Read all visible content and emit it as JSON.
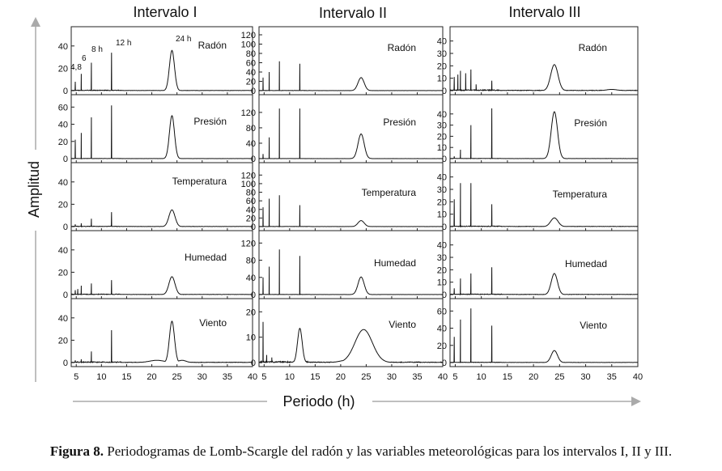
{
  "figure": {
    "ylabel": "Amplitud",
    "xlabel": "Periodo (h)",
    "caption_label": "Figura 8.",
    "caption_text": "Periodogramas de Lomb-Scargle del radón y las variables meteorológicas para los intervalos I, II y III.",
    "columns": [
      "Intervalo I",
      "Intervalo II",
      "Intervalo III"
    ],
    "rows": [
      "Radón",
      "Presión",
      "Temperatura",
      "Humedad",
      "Viento"
    ],
    "peak_annotations": [
      "4,8",
      "6",
      "8 h",
      "12 h",
      "24 h"
    ],
    "colors": {
      "line": "#111111",
      "axis": "#222222",
      "arrow": "#aaaaaa"
    }
  },
  "chart_data": {
    "type": "line",
    "xlim": [
      4,
      40
    ],
    "xticks": [
      5,
      10,
      15,
      20,
      25,
      30,
      35,
      40
    ],
    "panels": [
      {
        "column": "Intervalo I",
        "series": "Radón",
        "ylim": [
          0,
          50
        ],
        "yticks": [
          0,
          20,
          40
        ],
        "spikes": [
          [
            4.8,
            8
          ],
          [
            6,
            15
          ],
          [
            8,
            25
          ],
          [
            12,
            34
          ]
        ],
        "peaks": [
          [
            24,
            36,
            0.5
          ]
        ],
        "noise": 1
      },
      {
        "column": "Intervalo I",
        "series": "Presión",
        "ylim": [
          0,
          65
        ],
        "yticks": [
          0,
          20,
          40,
          60
        ],
        "spikes": [
          [
            4.8,
            22
          ],
          [
            6,
            30
          ],
          [
            8,
            48
          ],
          [
            12,
            62
          ]
        ],
        "peaks": [
          [
            24,
            50,
            0.5
          ]
        ],
        "noise": 0.5
      },
      {
        "column": "Intervalo I",
        "series": "Temperatura",
        "ylim": [
          0,
          50
        ],
        "yticks": [
          0,
          20,
          40
        ],
        "spikes": [
          [
            4.8,
            2
          ],
          [
            6,
            3
          ],
          [
            8,
            7
          ],
          [
            12,
            13
          ]
        ],
        "peaks": [
          [
            24,
            15,
            0.6
          ]
        ],
        "noise": 0.8
      },
      {
        "column": "Intervalo I",
        "series": "Humedad",
        "ylim": [
          0,
          50
        ],
        "yticks": [
          0,
          20,
          40
        ],
        "spikes": [
          [
            4.8,
            4
          ],
          [
            5.3,
            5
          ],
          [
            6,
            8
          ],
          [
            8,
            10
          ],
          [
            12,
            13
          ]
        ],
        "peaks": [
          [
            24,
            16,
            0.6
          ]
        ],
        "noise": 1
      },
      {
        "column": "Intervalo I",
        "series": "Viento",
        "ylim": [
          0,
          50
        ],
        "yticks": [
          0,
          20,
          40
        ],
        "spikes": [
          [
            4.8,
            2
          ],
          [
            6,
            3
          ],
          [
            8,
            10
          ],
          [
            12,
            29
          ]
        ],
        "peaks": [
          [
            24,
            37,
            0.5
          ],
          [
            21,
            2,
            1.5
          ],
          [
            26,
            2,
            0.8
          ]
        ],
        "noise": 1.5
      },
      {
        "column": "Intervalo II",
        "series": "Radón",
        "ylim": [
          0,
          120
        ],
        "yticks": [
          0,
          20,
          40,
          60,
          80,
          100,
          120
        ],
        "spikes": [
          [
            4.8,
            28
          ],
          [
            6,
            40
          ],
          [
            8,
            63
          ],
          [
            12,
            58
          ]
        ],
        "peaks": [
          [
            24,
            28,
            0.6
          ]
        ],
        "noise": 1
      },
      {
        "column": "Intervalo II",
        "series": "Presión",
        "ylim": [
          0,
          145
        ],
        "yticks": [
          0,
          40,
          80,
          120
        ],
        "spikes": [
          [
            4.8,
            12
          ],
          [
            6,
            55
          ],
          [
            8,
            130
          ],
          [
            12,
            130
          ]
        ],
        "peaks": [
          [
            24,
            64,
            0.6
          ]
        ],
        "noise": 0.5
      },
      {
        "column": "Intervalo II",
        "series": "Temperatura",
        "ylim": [
          0,
          130
        ],
        "yticks": [
          0,
          20,
          40,
          60,
          80,
          100,
          120
        ],
        "spikes": [
          [
            4.8,
            45
          ],
          [
            6,
            65
          ],
          [
            8,
            73
          ],
          [
            12,
            50
          ]
        ],
        "peaks": [
          [
            24,
            14,
            0.6
          ]
        ],
        "noise": 1
      },
      {
        "column": "Intervalo II",
        "series": "Humedad",
        "ylim": [
          0,
          130
        ],
        "yticks": [
          0,
          40,
          80,
          120
        ],
        "spikes": [
          [
            4.8,
            40
          ],
          [
            6,
            65
          ],
          [
            8,
            105
          ],
          [
            12,
            90
          ]
        ],
        "peaks": [
          [
            24,
            41,
            0.6
          ]
        ],
        "noise": 1
      },
      {
        "column": "Intervalo II",
        "series": "Viento",
        "ylim": [
          0,
          22
        ],
        "yticks": [
          0,
          10,
          20
        ],
        "spikes": [
          [
            4.8,
            16
          ],
          [
            5.5,
            3
          ],
          [
            6.5,
            2
          ]
        ],
        "peaks": [
          [
            12,
            13.5,
            0.45
          ],
          [
            24.5,
            13,
            1.7
          ],
          [
            21.5,
            1,
            1.5
          ]
        ],
        "noise": 1
      },
      {
        "column": "Intervalo III",
        "series": "Radón",
        "ylim": [
          0,
          45
        ],
        "yticks": [
          0,
          10,
          20,
          30,
          40
        ],
        "spikes": [
          [
            4.8,
            11
          ],
          [
            5.5,
            13
          ],
          [
            6,
            16
          ],
          [
            7,
            14
          ],
          [
            8,
            17
          ],
          [
            9,
            5
          ],
          [
            12,
            8
          ]
        ],
        "peaks": [
          [
            24,
            21,
            0.7
          ],
          [
            35,
            1,
            1
          ]
        ],
        "noise": 1.5
      },
      {
        "column": "Intervalo III",
        "series": "Presión",
        "ylim": [
          0,
          50
        ],
        "yticks": [
          0,
          10,
          20,
          30,
          40
        ],
        "spikes": [
          [
            4.8,
            2
          ],
          [
            6,
            8
          ],
          [
            8,
            30
          ],
          [
            12,
            45
          ]
        ],
        "peaks": [
          [
            24,
            42,
            0.6
          ]
        ],
        "noise": 0.5
      },
      {
        "column": "Intervalo III",
        "series": "Temperatura",
        "ylim": [
          0,
          45
        ],
        "yticks": [
          0,
          10,
          20,
          30,
          40
        ],
        "spikes": [
          [
            4.8,
            22
          ],
          [
            6,
            35
          ],
          [
            8,
            35
          ],
          [
            12,
            18
          ]
        ],
        "peaks": [
          [
            24,
            7,
            0.7
          ]
        ],
        "noise": 1
      },
      {
        "column": "Intervalo III",
        "series": "Humedad",
        "ylim": [
          0,
          45
        ],
        "yticks": [
          0,
          10,
          20,
          30,
          40
        ],
        "spikes": [
          [
            4.8,
            5
          ],
          [
            6,
            13
          ],
          [
            8,
            17
          ],
          [
            12,
            22
          ]
        ],
        "peaks": [
          [
            24,
            17,
            0.6
          ]
        ],
        "noise": 1
      },
      {
        "column": "Intervalo III",
        "series": "Viento",
        "ylim": [
          0,
          65
        ],
        "yticks": [
          0,
          20,
          40,
          60
        ],
        "spikes": [
          [
            4.8,
            30
          ],
          [
            6,
            50
          ],
          [
            8,
            63
          ],
          [
            12,
            43
          ]
        ],
        "peaks": [
          [
            24,
            14,
            0.6
          ]
        ],
        "noise": 1
      }
    ]
  }
}
